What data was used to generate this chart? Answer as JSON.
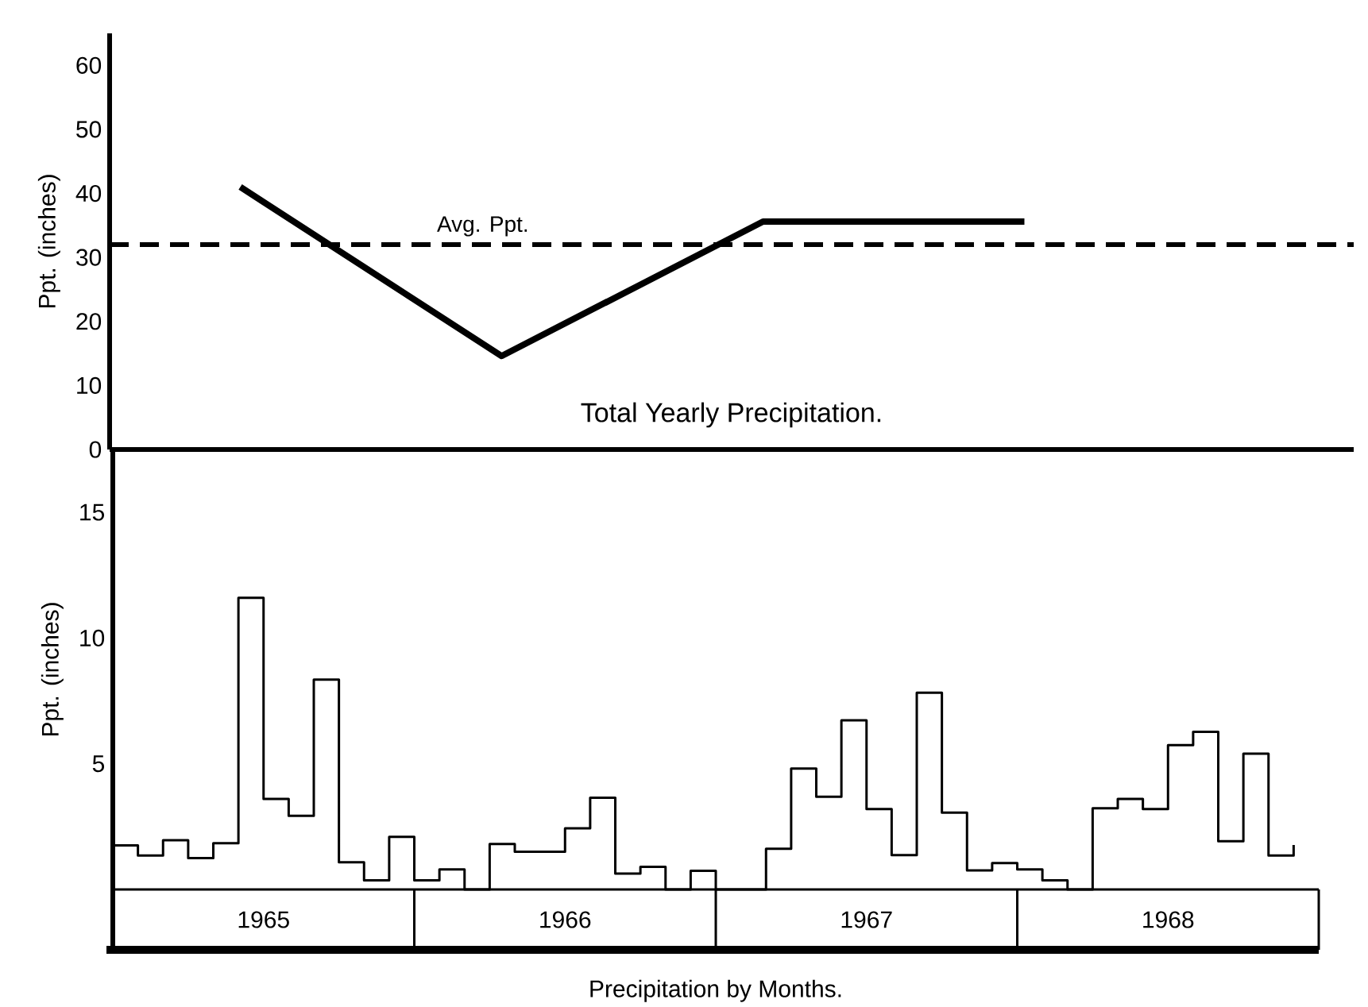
{
  "chart_data": [
    {
      "type": "line",
      "title": "Total Yearly Precipitation.",
      "ylabel": "Ppt. (inches)",
      "categories": [
        null,
        null,
        null,
        null
      ],
      "values": [
        41,
        14.6,
        35.6,
        35.6
      ],
      "color": "#000000",
      "ylim": [
        0,
        65
      ],
      "yticks": [
        0,
        10,
        20,
        30,
        40,
        50,
        60
      ],
      "ref_lines": [
        {
          "axis": "y",
          "value": 32,
          "label": "Avg. Ppt.",
          "line_style": "dashed",
          "color": "#000000"
        }
      ]
    },
    {
      "type": "step",
      "xlabel": "Precipitation by Months.",
      "ylabel": "Ppt. (inches)",
      "x": [
        "1965-01",
        "1965-02",
        "1965-03",
        "1965-04",
        "1965-05",
        "1965-06",
        "1965-07",
        "1965-08",
        "1965-09",
        "1965-10",
        "1965-11",
        "1965-12",
        "1966-01",
        "1966-02",
        "1966-03",
        "1966-04",
        "1966-05",
        "1966-06",
        "1966-07",
        "1966-08",
        "1966-09",
        "1966-10",
        "1966-11",
        "1966-12",
        "1967-01",
        "1967-02",
        "1967-03",
        "1967-04",
        "1967-05",
        "1967-06",
        "1967-07",
        "1967-08",
        "1967-09",
        "1967-10",
        "1967-11",
        "1967-12",
        "1968-01",
        "1968-02",
        "1968-03",
        "1968-04",
        "1968-05",
        "1968-06",
        "1968-07",
        "1968-08",
        "1968-09",
        "1968-10",
        "1968-11",
        "1968-12"
      ],
      "values": [
        1.75,
        1.35,
        1.96,
        1.25,
        1.84,
        11.6,
        3.6,
        2.93,
        8.35,
        1.08,
        0.36,
        2.09,
        0.36,
        0.8,
        0,
        1.81,
        1.5,
        1.5,
        2.43,
        3.65,
        0.63,
        0.9,
        0,
        0.74,
        0,
        0,
        1.62,
        4.81,
        3.69,
        6.73,
        3.2,
        1.37,
        7.83,
        3.06,
        0.76,
        1.05,
        0.8,
        0.36,
        0,
        3.23,
        3.6,
        3.2,
        5.74,
        6.27,
        1.92,
        5.4,
        1.35,
        1.77
      ],
      "color": "#000000",
      "xlim": [
        "1965-01",
        "1969-01"
      ],
      "xticks": [
        {
          "value": "1965-07",
          "label": "1965"
        },
        {
          "value": "1966-07",
          "label": "1966"
        },
        {
          "value": "1967-07",
          "label": "1967"
        },
        {
          "value": "1968-07",
          "label": "1968"
        }
      ],
      "ylim": [
        0,
        17.5
      ],
      "yticks": [
        5,
        10,
        15
      ]
    }
  ]
}
